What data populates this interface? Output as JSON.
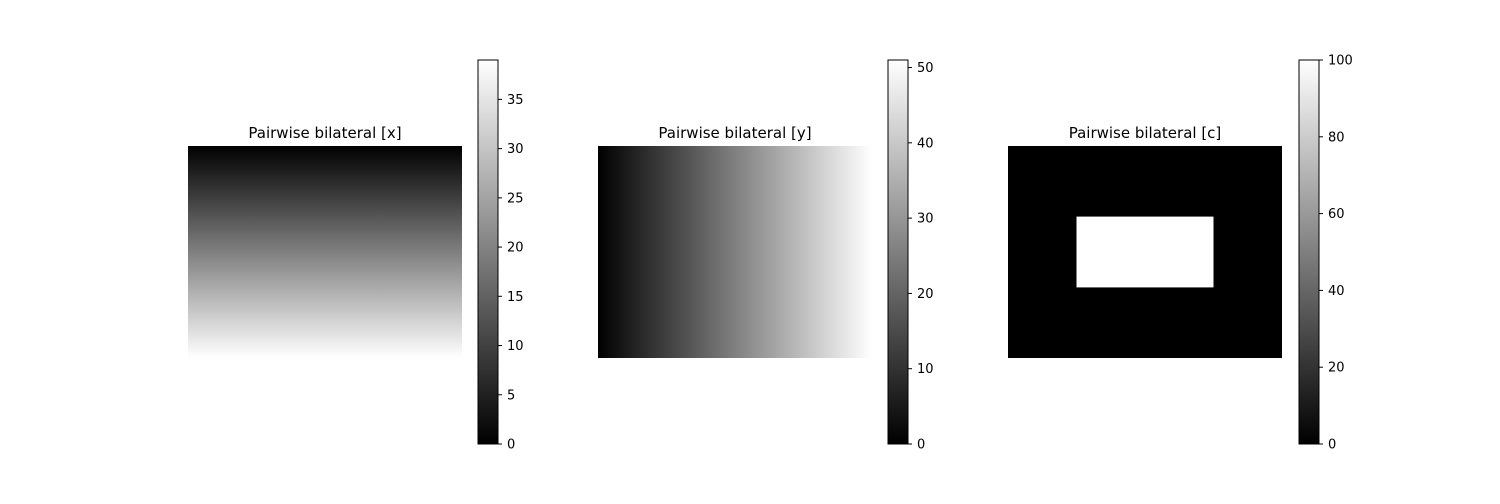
{
  "chart_data": [
    {
      "type": "heatmap",
      "title": "Pairwise bilateral [x]",
      "description": "vertical gradient, black at top to white at bottom",
      "gradient": "vertical",
      "zlim": [
        0,
        39
      ],
      "colorbar": {
        "cmap": "gray",
        "ticks": [
          0,
          5,
          10,
          15,
          20,
          25,
          30,
          35
        ]
      },
      "axes_visible": false
    },
    {
      "type": "heatmap",
      "title": "Pairwise bilateral [y]",
      "description": "horizontal gradient, black at left to white at right",
      "gradient": "horizontal",
      "zlim": [
        0,
        51
      ],
      "colorbar": {
        "cmap": "gray",
        "ticks": [
          0,
          10,
          20,
          30,
          40,
          50
        ]
      },
      "axes_visible": false
    },
    {
      "type": "heatmap",
      "title": "Pairwise bilateral [c]",
      "description": "black field with a white rectangle (value 100) in the center",
      "gradient": "none",
      "background_value": 0,
      "rect_value": 100,
      "rect_extent_fraction": {
        "x": [
          0.25,
          0.75
        ],
        "y": [
          0.333,
          0.667
        ]
      },
      "zlim": [
        0,
        100
      ],
      "colorbar": {
        "cmap": "gray",
        "ticks": [
          0,
          20,
          40,
          60,
          80,
          100
        ]
      },
      "axes_visible": false
    }
  ]
}
